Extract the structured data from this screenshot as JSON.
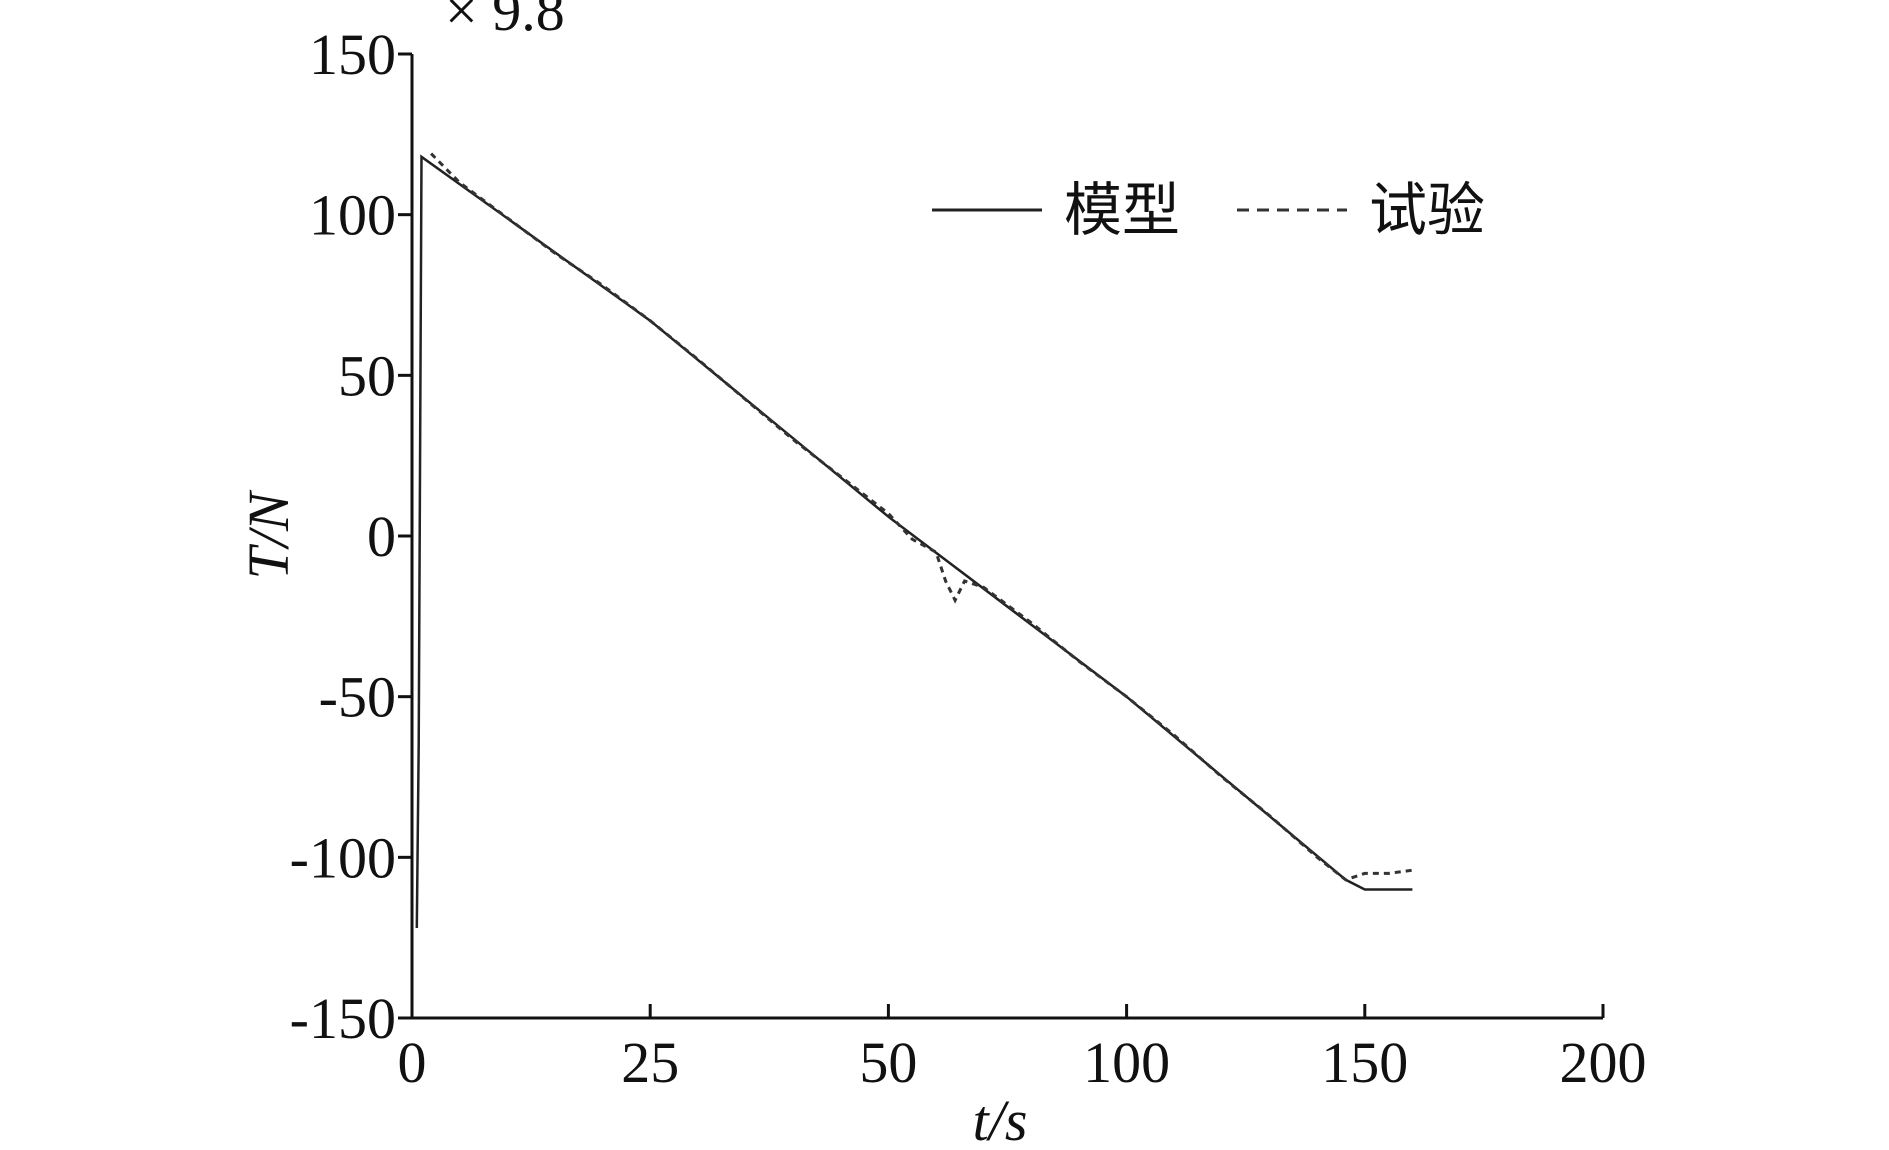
{
  "chart_data": {
    "type": "line",
    "annotation": "× 9.8",
    "xlabel": "t/s",
    "ylabel": "T/N",
    "xlim": [
      0,
      200
    ],
    "xticks": [
      0,
      25,
      50,
      100,
      150,
      200
    ],
    "ylim": [
      -150,
      150
    ],
    "yticks": [
      -150,
      -100,
      -50,
      0,
      50,
      100,
      150
    ],
    "legend": "upper right",
    "series": [
      {
        "name": "模型",
        "color": "#222222",
        "dash": "solid",
        "x": [
          0.5,
          0.7,
          1,
          25,
          50,
          100,
          146,
          150,
          160
        ],
        "values": [
          -122,
          -65,
          118,
          67,
          6,
          -50,
          -107,
          -110,
          -110
        ]
      },
      {
        "name": "试验",
        "color": "#333333",
        "dash": "dashed",
        "x": [
          2,
          5,
          10,
          15,
          20,
          25,
          30,
          40,
          50,
          55,
          60,
          62,
          64,
          66,
          70,
          80,
          90,
          100,
          110,
          120,
          130,
          140,
          146,
          150,
          155,
          160
        ],
        "values": [
          119,
          110,
          99,
          88,
          78,
          67,
          55,
          30,
          7,
          -1,
          -5,
          -14,
          -20,
          -14,
          -16,
          -27,
          -39,
          -50,
          -62,
          -75,
          -87,
          -100,
          -107,
          -105,
          -105,
          -104
        ]
      }
    ]
  }
}
